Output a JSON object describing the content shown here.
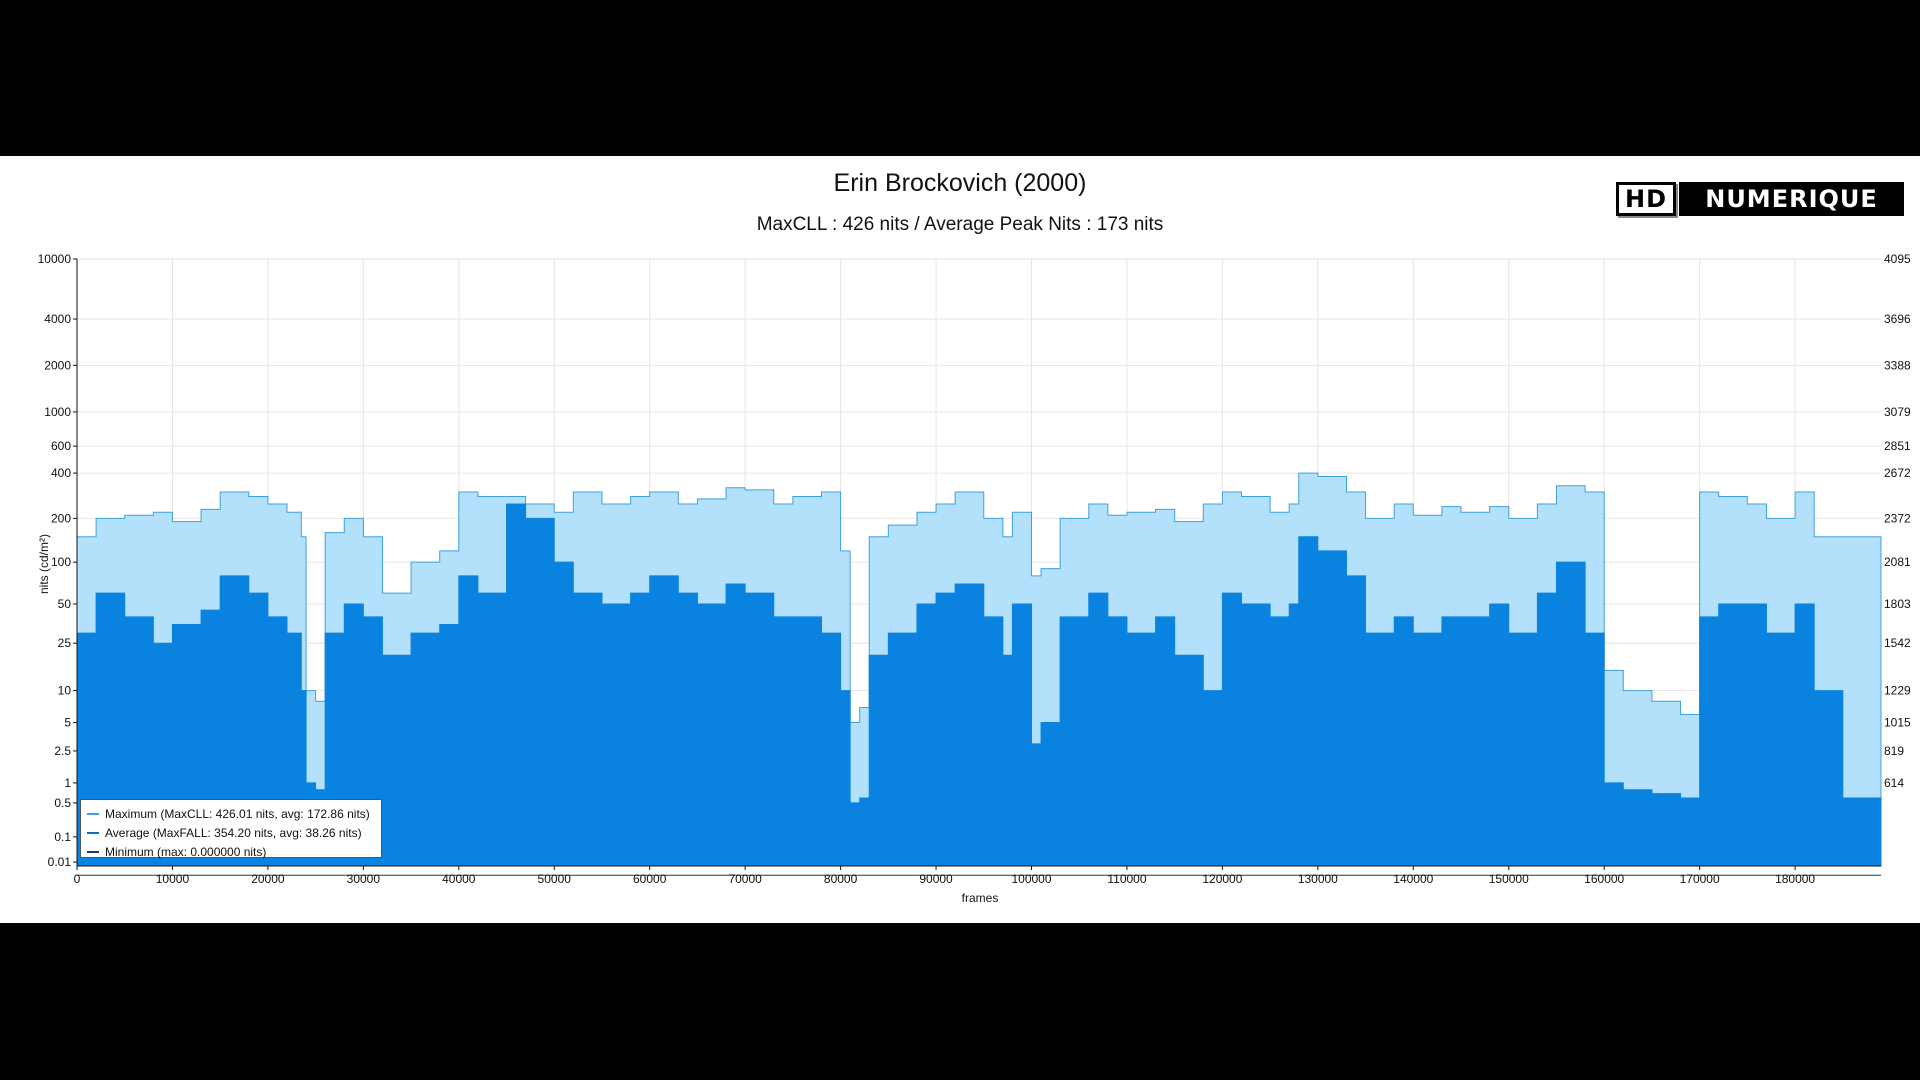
{
  "title": "Erin Brockovich (2000)",
  "subtitle": "MaxCLL : 426 nits / Average Peak Nits : 173 nits",
  "logo": {
    "hd": "HD",
    "name": "NUMERIQUE"
  },
  "colors": {
    "maximum": "#b3e1fb",
    "maximum_edge": "#3fa0db",
    "average": "#0a82e0",
    "minimum": "#1f3a66",
    "grid": "#e6e6e6"
  },
  "chart_data": {
    "type": "area",
    "title": "Erin Brockovich (2000)",
    "subtitle": "MaxCLL : 426 nits / Average Peak Nits : 173 nits",
    "xlabel": "frames",
    "ylabel": "nits (cd/m²)",
    "xlim": [
      0,
      189000
    ],
    "x_ticks": [
      "0",
      "10000",
      "20000",
      "30000",
      "40000",
      "50000",
      "60000",
      "70000",
      "80000",
      "90000",
      "100000",
      "110000",
      "120000",
      "130000",
      "140000",
      "150000",
      "160000",
      "170000",
      "180000"
    ],
    "y_scale": "pq",
    "y_ticks_left": [
      "10000",
      "4000",
      "2000",
      "1000",
      "600",
      "400",
      "200",
      "100",
      "50",
      "25",
      "10",
      "5",
      "2.5",
      "1",
      "0.5",
      "0.1",
      "0.01"
    ],
    "y_ticks_right": [
      "4095",
      "3696",
      "3388",
      "3079",
      "2851",
      "2672",
      "2372",
      "2081",
      "1803",
      "1542",
      "1229",
      "1015",
      "819",
      "614"
    ],
    "grid": true,
    "legend_position": "bottom-left",
    "legend": [
      "Maximum (MaxCLL: 426.01 nits, avg: 172.86 nits)",
      "Average (MaxFALL: 354.20 nits, avg: 38.26 nits)",
      "Minimum (max: 0.000000 nits)"
    ],
    "series": [
      {
        "name": "Maximum",
        "x": [
          0,
          2000,
          5000,
          8000,
          10000,
          13000,
          15000,
          18000,
          20000,
          22000,
          23500,
          24000,
          25000,
          26000,
          28000,
          30000,
          32000,
          35000,
          38000,
          40000,
          42000,
          45000,
          47000,
          50000,
          52000,
          55000,
          58000,
          60000,
          63000,
          65000,
          68000,
          70000,
          73000,
          75000,
          78000,
          80000,
          81000,
          82000,
          83000,
          85000,
          88000,
          90000,
          92000,
          95000,
          97000,
          98000,
          100000,
          101000,
          103000,
          106000,
          108000,
          110000,
          113000,
          115000,
          118000,
          120000,
          122000,
          125000,
          127000,
          128000,
          130000,
          133000,
          135000,
          138000,
          140000,
          143000,
          145000,
          148000,
          150000,
          153000,
          155000,
          158000,
          160000,
          162000,
          165000,
          168000,
          170000,
          172000,
          175000,
          177000,
          180000,
          182000,
          185000,
          189000
        ],
        "values": [
          150,
          200,
          210,
          220,
          190,
          230,
          300,
          280,
          250,
          220,
          150,
          10,
          8,
          160,
          200,
          150,
          60,
          100,
          120,
          300,
          280,
          280,
          250,
          220,
          300,
          250,
          280,
          300,
          250,
          270,
          320,
          310,
          250,
          280,
          300,
          120,
          5,
          7,
          150,
          180,
          220,
          250,
          300,
          200,
          150,
          220,
          80,
          90,
          200,
          250,
          210,
          220,
          230,
          190,
          250,
          300,
          280,
          220,
          250,
          400,
          380,
          300,
          200,
          250,
          210,
          240,
          220,
          240,
          200,
          250,
          330,
          300,
          15,
          10,
          8,
          6,
          300,
          280,
          250,
          200,
          300,
          150,
          150,
          150
        ]
      },
      {
        "name": "Average",
        "x": [
          0,
          2000,
          5000,
          8000,
          10000,
          13000,
          15000,
          18000,
          20000,
          22000,
          23500,
          24000,
          25000,
          26000,
          28000,
          30000,
          32000,
          35000,
          38000,
          40000,
          42000,
          45000,
          47000,
          50000,
          52000,
          55000,
          58000,
          60000,
          63000,
          65000,
          68000,
          70000,
          73000,
          75000,
          78000,
          80000,
          81000,
          82000,
          83000,
          85000,
          88000,
          90000,
          92000,
          95000,
          97000,
          98000,
          100000,
          101000,
          103000,
          106000,
          108000,
          110000,
          113000,
          115000,
          118000,
          120000,
          122000,
          125000,
          127000,
          128000,
          130000,
          133000,
          135000,
          138000,
          140000,
          143000,
          145000,
          148000,
          150000,
          153000,
          155000,
          158000,
          160000,
          162000,
          165000,
          168000,
          170000,
          172000,
          175000,
          177000,
          180000,
          182000,
          185000,
          189000
        ],
        "values": [
          30,
          60,
          40,
          25,
          35,
          45,
          80,
          60,
          40,
          30,
          10,
          1,
          0.8,
          30,
          50,
          40,
          20,
          30,
          35,
          80,
          60,
          250,
          200,
          100,
          60,
          50,
          60,
          80,
          60,
          50,
          70,
          60,
          40,
          40,
          30,
          10,
          0.5,
          0.6,
          20,
          30,
          50,
          60,
          70,
          40,
          20,
          50,
          3,
          5,
          40,
          60,
          40,
          30,
          40,
          20,
          10,
          60,
          50,
          40,
          50,
          150,
          120,
          80,
          30,
          40,
          30,
          40,
          40,
          50,
          30,
          60,
          100,
          30,
          1,
          0.8,
          0.7,
          0.6,
          40,
          50,
          50,
          30,
          50,
          10,
          0.6,
          0.6
        ]
      },
      {
        "name": "Minimum",
        "x": [
          0,
          189000
        ],
        "values": [
          0,
          0
        ]
      }
    ]
  }
}
